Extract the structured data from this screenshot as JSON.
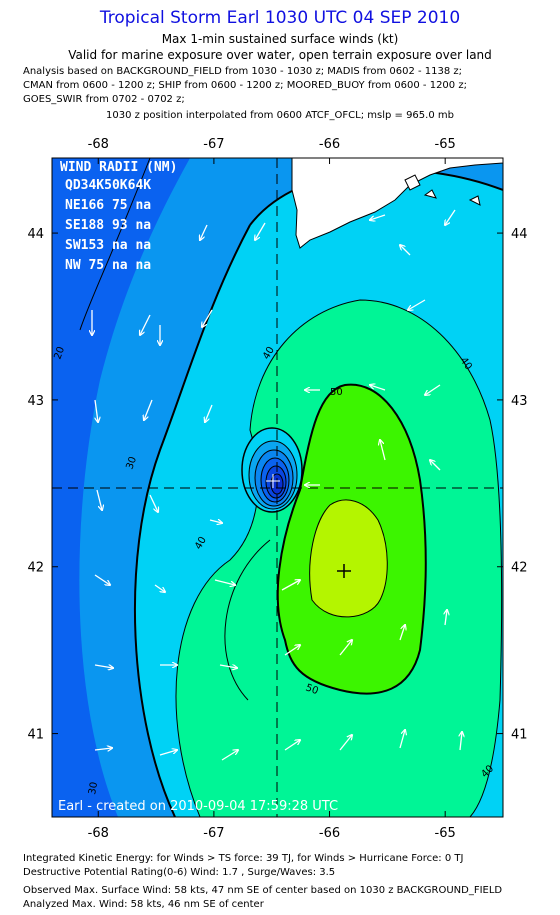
{
  "header": {
    "title": "Tropical Storm Earl 1030 UTC 04 SEP 2010",
    "subtitle1": "Max 1-min sustained surface winds (kt)",
    "subtitle2": "Valid for marine exposure over water, open terrain exposure over land",
    "analysis": [
      "Analysis based on BACKGROUND_FIELD from 1030 - 1030 z; MADIS from 0602 - 1138 z;",
      "CMAN from 0600 - 1200 z; SHIP from 0600 - 1200 z; MOORED_BUOY from 0600 - 1200 z;",
      "GOES_SWIR from 0702 - 0702 z;"
    ],
    "position_line": "1030 z position interpolated from 0600 ATCF_OFCL; mslp = 965.0 mb"
  },
  "map": {
    "lon_ticks": [
      "-68",
      "-67",
      "-66",
      "-65"
    ],
    "lat_ticks": [
      "44",
      "43",
      "42",
      "41"
    ],
    "lon_range": [
      -68.4,
      -64.5
    ],
    "lat_range": [
      40.5,
      44.45
    ],
    "center": {
      "lon": -66.38,
      "lat": 42.45
    },
    "max_wind_marker": {
      "lon": -65.78,
      "lat": 41.95
    },
    "contour_labels": [
      "20",
      "30",
      "40",
      "40",
      "40",
      "50",
      "50",
      "30",
      "40"
    ],
    "wind_radii": {
      "title": "WIND RADII (NM)",
      "header": "QD34K50K64K",
      "rows": [
        "NE166 75 na",
        "SE188 93 na",
        "SW153 na na",
        "NW 75 na na"
      ]
    },
    "credit": "Earl - created on 2010-09-04 17:59:28 UTC",
    "colors": {
      "band_lt20": "#0a62f0",
      "band_20_30": "#0a96f0",
      "band_30_40": "#00d2f5",
      "band_40_50": "#00f596",
      "band_50_60": "#3cf500",
      "band_gt60": "#b4f500",
      "land": "#ffffff"
    }
  },
  "footer": {
    "lines": [
      "Integrated Kinetic Energy:  for Winds > TS force: 39 TJ,  for Winds > Hurricane Force: 0 TJ",
      "Destructive Potential Rating(0-6)   Wind: 1.7 , Surge/Waves: 3.5",
      "Observed Max. Surface Wind: 58 kts, 47 nm SE of center based on 1030 z BACKGROUND_FIELD",
      "Analyzed Max. Wind: 58 kts, 46 nm SE of center"
    ]
  }
}
